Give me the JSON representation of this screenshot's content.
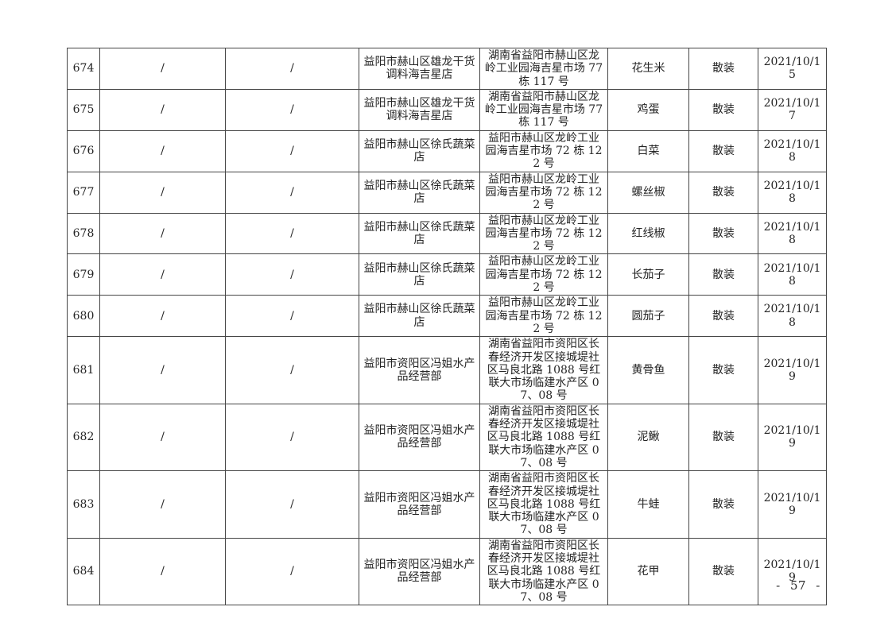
{
  "page": {
    "footer_page_number": "- 57 -"
  },
  "table": {
    "packaging_common": "散装",
    "rows": [
      {
        "seq": "674",
        "blank1": "/",
        "blank2": "/",
        "store_name": "益阳市赫山区雄龙干货调料海吉星店",
        "address": "湖南省益阳市赫山区龙岭工业园海吉星市场 77 栋 117 号",
        "sample_name": "花生米",
        "packaging": "散装",
        "date": "2021/10/15"
      },
      {
        "seq": "675",
        "blank1": "/",
        "blank2": "/",
        "store_name": "益阳市赫山区雄龙干货调料海吉星店",
        "address": "湖南省益阳市赫山区龙岭工业园海吉星市场 77 栋 117 号",
        "sample_name": "鸡蛋",
        "packaging": "散装",
        "date": "2021/10/17"
      },
      {
        "seq": "676",
        "blank1": "/",
        "blank2": "/",
        "store_name": "益阳市赫山区徐氏蔬菜店",
        "address": "益阳市赫山区龙岭工业园海吉星市场 72 栋 122 号",
        "sample_name": "白菜",
        "packaging": "散装",
        "date": "2021/10/18"
      },
      {
        "seq": "677",
        "blank1": "/",
        "blank2": "/",
        "store_name": "益阳市赫山区徐氏蔬菜店",
        "address": "益阳市赫山区龙岭工业园海吉星市场 72 栋 122 号",
        "sample_name": "螺丝椒",
        "packaging": "散装",
        "date": "2021/10/18"
      },
      {
        "seq": "678",
        "blank1": "/",
        "blank2": "/",
        "store_name": "益阳市赫山区徐氏蔬菜店",
        "address": "益阳市赫山区龙岭工业园海吉星市场 72 栋 122 号",
        "sample_name": "红线椒",
        "packaging": "散装",
        "date": "2021/10/18"
      },
      {
        "seq": "679",
        "blank1": "/",
        "blank2": "/",
        "store_name": "益阳市赫山区徐氏蔬菜店",
        "address": "益阳市赫山区龙岭工业园海吉星市场 72 栋 122 号",
        "sample_name": "长茄子",
        "packaging": "散装",
        "date": "2021/10/18"
      },
      {
        "seq": "680",
        "blank1": "/",
        "blank2": "/",
        "store_name": "益阳市赫山区徐氏蔬菜店",
        "address": "益阳市赫山区龙岭工业园海吉星市场 72 栋 122 号",
        "sample_name": "圆茄子",
        "packaging": "散装",
        "date": "2021/10/18"
      },
      {
        "seq": "681",
        "blank1": "/",
        "blank2": "/",
        "store_name": "益阳市资阳区冯姐水产品经营部",
        "address": "湖南省益阳市资阳区长春经济开发区接城堤社区马良北路 1088 号红联大市场临建水产区 07、08 号",
        "sample_name": "黄骨鱼",
        "packaging": "散装",
        "date": "2021/10/19"
      },
      {
        "seq": "682",
        "blank1": "/",
        "blank2": "/",
        "store_name": "益阳市资阳区冯姐水产品经营部",
        "address": "湖南省益阳市资阳区长春经济开发区接城堤社区马良北路 1088 号红联大市场临建水产区 07、08 号",
        "sample_name": "泥鳅",
        "packaging": "散装",
        "date": "2021/10/19"
      },
      {
        "seq": "683",
        "blank1": "/",
        "blank2": "/",
        "store_name": "益阳市资阳区冯姐水产品经营部",
        "address": "湖南省益阳市资阳区长春经济开发区接城堤社区马良北路 1088 号红联大市场临建水产区 07、08 号",
        "sample_name": "牛蛙",
        "packaging": "散装",
        "date": "2021/10/19"
      },
      {
        "seq": "684",
        "blank1": "/",
        "blank2": "/",
        "store_name": "益阳市资阳区冯姐水产品经营部",
        "address": "湖南省益阳市资阳区长春经济开发区接城堤社区马良北路 1088 号红联大市场临建水产区 07、08 号",
        "sample_name": "花甲",
        "packaging": "散装",
        "date": "2021/10/19"
      }
    ]
  }
}
